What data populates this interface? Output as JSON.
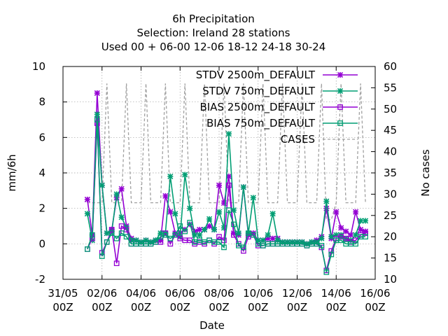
{
  "chart_data": {
    "type": "line",
    "title_lines": [
      "6h Precipitation",
      "Selection: Ireland     28 stations",
      "Used  00 + 06-00 12-06 18-12 24-18 30-24"
    ],
    "xlabel": "Date",
    "ylabel": "mm/6h",
    "y2label": "No cases",
    "xlim": [
      0,
      16
    ],
    "ylim": [
      -2,
      10
    ],
    "y2lim": [
      10,
      60
    ],
    "x_ticks": [
      {
        "x": 0,
        "l1": "31/05",
        "l2": "00Z"
      },
      {
        "x": 2,
        "l1": "02/06",
        "l2": "00Z"
      },
      {
        "x": 4,
        "l1": "04/06",
        "l2": "00Z"
      },
      {
        "x": 6,
        "l1": "06/06",
        "l2": "00Z"
      },
      {
        "x": 8,
        "l1": "08/06",
        "l2": "00Z"
      },
      {
        "x": 10,
        "l1": "10/06",
        "l2": "00Z"
      },
      {
        "x": 12,
        "l1": "12/06",
        "l2": "00Z"
      },
      {
        "x": 14,
        "l1": "14/06",
        "l2": "00Z"
      },
      {
        "x": 16,
        "l1": "16/06",
        "l2": "00Z"
      }
    ],
    "y_ticks": [
      -2,
      0,
      2,
      4,
      6,
      8,
      10
    ],
    "y2_ticks": [
      10,
      15,
      20,
      25,
      30,
      35,
      40,
      45,
      50,
      55,
      60
    ],
    "grid": true,
    "legend_position": "top-right",
    "x": [
      1.25,
      1.5,
      1.75,
      2.0,
      2.25,
      2.5,
      2.75,
      3.0,
      3.25,
      3.5,
      3.75,
      4.0,
      4.25,
      4.5,
      4.75,
      5.0,
      5.25,
      5.5,
      5.75,
      6.0,
      6.25,
      6.5,
      6.75,
      7.0,
      7.25,
      7.5,
      7.75,
      8.0,
      8.25,
      8.5,
      8.75,
      9.0,
      9.25,
      9.5,
      9.75,
      10.0,
      10.25,
      10.5,
      10.75,
      11.0,
      11.25,
      11.5,
      11.75,
      12.0,
      12.25,
      12.5,
      12.75,
      13.0,
      13.25,
      13.5,
      13.75,
      14.0,
      14.25,
      14.5,
      14.75,
      15.0,
      15.25,
      15.5
    ],
    "series": [
      {
        "name": "STDV 2500m_DEFAULT",
        "color": "#9400d3",
        "marker": "x",
        "axis": "y",
        "values": [
          2.5,
          0.5,
          8.5,
          3.3,
          0.6,
          0.8,
          2.6,
          3.1,
          1.0,
          0.3,
          0.2,
          0.1,
          0.2,
          0.1,
          0.2,
          0.2,
          2.7,
          1.8,
          0.6,
          0.6,
          0.8,
          1.1,
          0.7,
          0.8,
          0.8,
          1.0,
          0.8,
          3.3,
          2.3,
          3.8,
          0.6,
          0.5,
          3.2,
          0.5,
          0.6,
          0.2,
          0.2,
          0.3,
          0.3,
          0.3,
          0.1,
          0.1,
          0.1,
          0.1,
          0.1,
          0.0,
          0.1,
          0.2,
          0.4,
          2.0,
          0.3,
          1.8,
          0.9,
          0.7,
          0.5,
          1.8,
          0.8,
          0.7
        ]
      },
      {
        "name": "STDV 750m_DEFAULT",
        "color": "#009e73",
        "marker": "x",
        "axis": "y",
        "values": [
          1.7,
          0.2,
          7.3,
          3.3,
          0.6,
          0.7,
          2.8,
          1.5,
          0.9,
          0.2,
          0.2,
          0.1,
          0.2,
          0.1,
          0.2,
          0.6,
          0.6,
          3.8,
          1.7,
          0.4,
          3.9,
          2.0,
          0.5,
          0.5,
          0.8,
          1.4,
          0.8,
          1.8,
          0.9,
          6.2,
          1.9,
          0.6,
          3.2,
          0.6,
          2.6,
          0.2,
          0.2,
          0.5,
          1.7,
          0.2,
          0.1,
          0.1,
          0.1,
          0.1,
          0.1,
          0.0,
          0.1,
          0.1,
          0.3,
          2.4,
          0.4,
          0.5,
          0.5,
          0.3,
          0.2,
          0.5,
          1.3,
          1.3
        ]
      },
      {
        "name": "BIAS 2500m_DEFAULT",
        "color": "#9400d3",
        "marker": "square",
        "axis": "y",
        "values": [
          -0.3,
          0.3,
          6.8,
          -0.5,
          0.1,
          0.8,
          -1.1,
          1.0,
          0.8,
          0.0,
          0.0,
          0.0,
          0.0,
          0.0,
          0.1,
          0.1,
          0.6,
          0.0,
          0.5,
          0.3,
          0.2,
          0.2,
          0.0,
          0.1,
          0.0,
          0.2,
          0.0,
          0.4,
          0.2,
          3.3,
          0.5,
          0.0,
          -0.4,
          0.4,
          0.5,
          -0.1,
          -0.1,
          0.0,
          0.0,
          0.0,
          0.0,
          0.0,
          0.0,
          0.0,
          0.0,
          -0.1,
          0.0,
          0.0,
          -0.2,
          -1.5,
          -0.4,
          0.3,
          0.4,
          0.3,
          0.1,
          0.2,
          0.5,
          0.6
        ]
      },
      {
        "name": "BIAS 750m_DEFAULT",
        "color": "#009e73",
        "marker": "square",
        "axis": "y",
        "values": [
          -0.3,
          0.5,
          7.0,
          -0.7,
          0.1,
          0.6,
          0.3,
          0.6,
          0.4,
          0.0,
          0.0,
          0.0,
          0.0,
          0.0,
          0.1,
          0.4,
          0.5,
          0.3,
          0.5,
          1.0,
          0.7,
          1.2,
          0.1,
          0.2,
          0.1,
          0.2,
          0.1,
          0.1,
          -0.2,
          1.9,
          1.1,
          -0.1,
          -0.2,
          0.6,
          0.5,
          0.0,
          -0.1,
          0.0,
          0.0,
          0.0,
          0.0,
          0.0,
          0.0,
          0.0,
          0.0,
          -0.1,
          0.0,
          0.0,
          -0.1,
          -1.6,
          -0.6,
          0.2,
          0.2,
          0.0,
          0.0,
          0.0,
          0.4,
          0.4
        ]
      },
      {
        "name": "CASES",
        "color": "#a0a0a0",
        "marker": "none",
        "axis": "y2",
        "dashed": true,
        "values": [
          28,
          28,
          28,
          28,
          56,
          28,
          28,
          28,
          56,
          28,
          28,
          28,
          56,
          28,
          28,
          28,
          56,
          28,
          28,
          28,
          56,
          28,
          28,
          28,
          56,
          28,
          28,
          28,
          56,
          28,
          28,
          28,
          56,
          28,
          28,
          28,
          56,
          28,
          28,
          28,
          56,
          28,
          28,
          28,
          56,
          28,
          28,
          28,
          56,
          24,
          24,
          28,
          56,
          28,
          28,
          28,
          56,
          28
        ]
      }
    ]
  }
}
